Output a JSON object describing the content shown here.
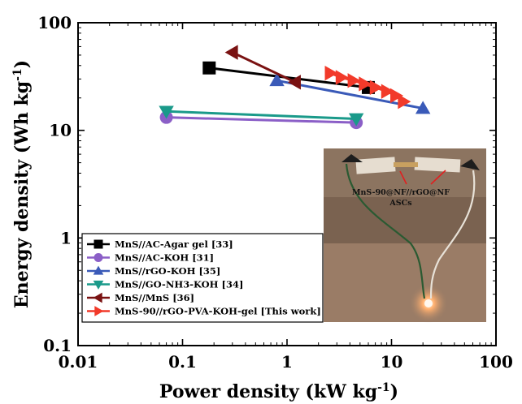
{
  "chart_data": {
    "type": "line",
    "x_scale": "log",
    "y_scale": "log",
    "xlim": [
      0.01,
      100
    ],
    "ylim": [
      0.1,
      100
    ],
    "xlabel": "Power density (kW kg",
    "xlabel_sup": "-1",
    "xlabel_end": ")",
    "ylabel": "Energy density (Wh kg",
    "ylabel_sup": "-1",
    "ylabel_end": ")",
    "x_ticks": [
      0.01,
      0.1,
      1,
      10,
      100
    ],
    "x_tick_labels": [
      "0.01",
      "0.1",
      "1",
      "10",
      "100"
    ],
    "y_ticks": [
      0.1,
      1,
      10,
      100
    ],
    "y_tick_labels": [
      "0.1",
      "1",
      "10",
      "100"
    ],
    "legend_position": "bottom-left",
    "series": [
      {
        "name": "MnS//AC-Agar gel [33]",
        "color": "#000000",
        "marker": "square",
        "x": [
          0.18,
          6.0
        ],
        "y": [
          38,
          25
        ]
      },
      {
        "name": "MnS//AC-KOH [31]",
        "color": "#8b5fc7",
        "marker": "circle",
        "x": [
          0.07,
          4.6
        ],
        "y": [
          13.2,
          11.8
        ]
      },
      {
        "name": "MnS//rGO-KOH [35]",
        "color": "#3a5ab8",
        "marker": "triangle-up",
        "x": [
          0.8,
          20
        ],
        "y": [
          29,
          16
        ]
      },
      {
        "name": "MnS//GO-NH3-KOH [34]",
        "color": "#1a9a8a",
        "marker": "triangle-down",
        "x": [
          0.07,
          4.6
        ],
        "y": [
          15,
          12.8
        ]
      },
      {
        "name": "MnS//MnS [36]",
        "color": "#7a1212",
        "marker": "triangle-left",
        "x": [
          0.3,
          1.2
        ],
        "y": [
          53,
          28
        ]
      },
      {
        "name": "MnS-90//rGO-PVA-KOH-gel [This work]",
        "color": "#f23a2a",
        "marker": "triangle-right",
        "x": [
          2.6,
          3.3,
          4.3,
          5.5,
          7.0,
          9.0,
          11.0,
          13.0
        ],
        "y": [
          34,
          31,
          29,
          27,
          25,
          23,
          21,
          18.5
        ]
      }
    ]
  },
  "inset": {
    "label_line1": "MnS-90@NF//rGO@NF",
    "label_line2": "ASCs"
  }
}
